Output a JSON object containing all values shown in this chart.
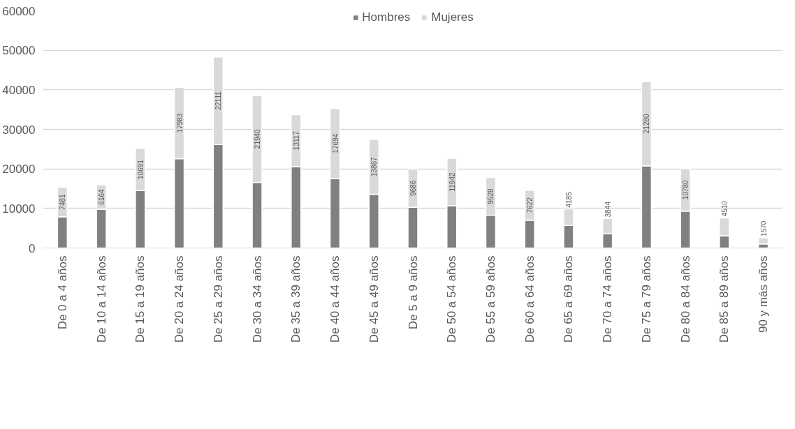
{
  "chart_data": {
    "type": "bar",
    "stacked": true,
    "categories": [
      "De 0 a 4 años",
      "De 10 a 14 años",
      "De 15 a 19 años",
      "De 20 a 24 años",
      "De 25 a 29 años",
      "De 30 a 34 años",
      "De 35 a 39 años",
      "De 40 a 44 años",
      "De 45 a 49 años",
      "De 5 a 9 años",
      "De 50 a 54 años",
      "De 55 a 59 años",
      "De 60 a 64 años",
      "De 65 a 69 años",
      "De 70 a 74 años",
      "De 75 a 79 años",
      "De 80 a 84 años",
      "De 85 a 89 años",
      "90 y más años"
    ],
    "series": [
      {
        "name": "Hombres",
        "color": "#808080",
        "values": [
          7900,
          9800,
          14500,
          22600,
          26200,
          16600,
          20600,
          17600,
          13600,
          10300,
          10700,
          8300,
          7000,
          5700,
          3600,
          20800,
          9300,
          3100,
          1000
        ]
      },
      {
        "name": "Mujeres",
        "color": "#d9d9d9",
        "values": [
          7481,
          6164,
          10691,
          17983,
          22111,
          21940,
          13117,
          17694,
          13867,
          9686,
          11942,
          9528,
          7622,
          4185,
          3844,
          21280,
          10780,
          4510,
          1570
        ],
        "value_labels": [
          "7481",
          "6164",
          "10691",
          "17983",
          "22111",
          "21940",
          "13117",
          "17694",
          "13867",
          "9686",
          "11942",
          "9528",
          "7622",
          "4185",
          "3844",
          "21280",
          "10780",
          "4510",
          "1570"
        ]
      }
    ],
    "ylim": [
      0,
      60000
    ],
    "yticks": [
      0,
      10000,
      20000,
      30000,
      40000,
      50000,
      60000
    ],
    "grid": "y",
    "legend": "top"
  }
}
